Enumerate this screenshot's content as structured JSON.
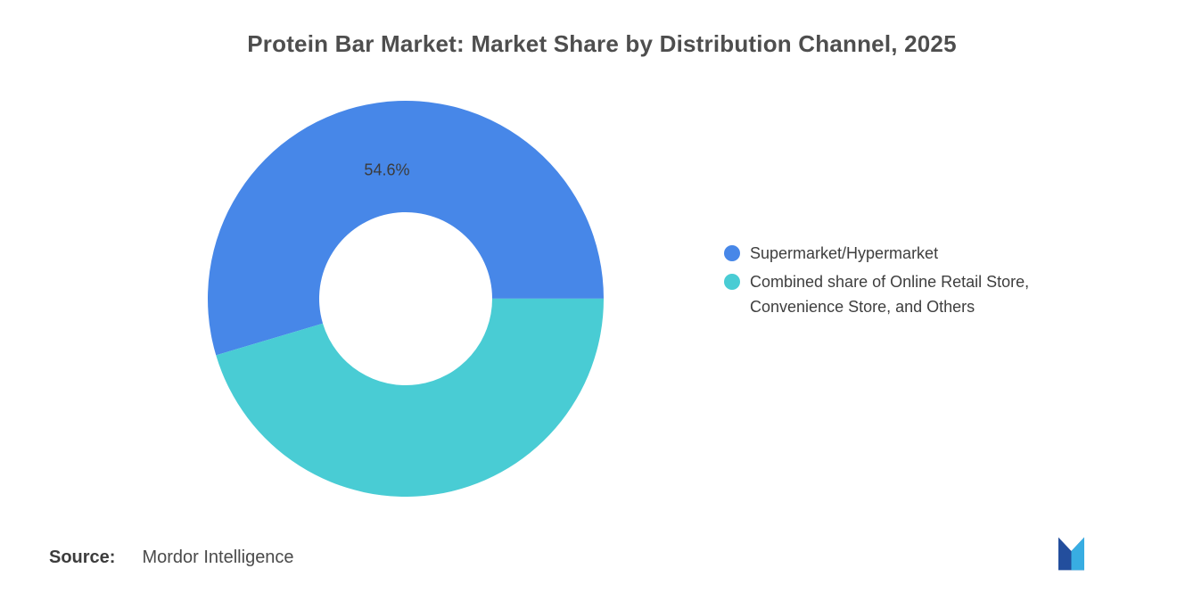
{
  "chart_data": {
    "type": "pie",
    "donut": true,
    "title": "Protein Bar Market: Market Share by Distribution Channel, 2025",
    "categories": [
      "Supermarket/Hypermarket",
      "Combined share of Online Retail Store, Convenience Store, and Others"
    ],
    "values": [
      54.6,
      45.4
    ],
    "unit": "%",
    "colors": [
      "#4787E8",
      "#49CCD4"
    ],
    "slice_labels": [
      "54.6%",
      ""
    ],
    "start_angle_deg": -106.6,
    "inner_radius_ratio": 0.437,
    "label_radius_ratio": 0.655,
    "legend_position": "right",
    "grid": false
  },
  "legend": {
    "items": [
      {
        "label": "Supermarket/Hypermarket",
        "color": "#4787E8"
      },
      {
        "label": "Combined share of Online Retail Store, Convenience Store, and Others",
        "color": "#49CCD4"
      }
    ]
  },
  "source": {
    "label": "Source:",
    "value": "Mordor Intelligence"
  },
  "logo": {
    "name": "mordor-intelligence-logo",
    "color_dark": "#234E9D",
    "color_light": "#38ADE2"
  }
}
